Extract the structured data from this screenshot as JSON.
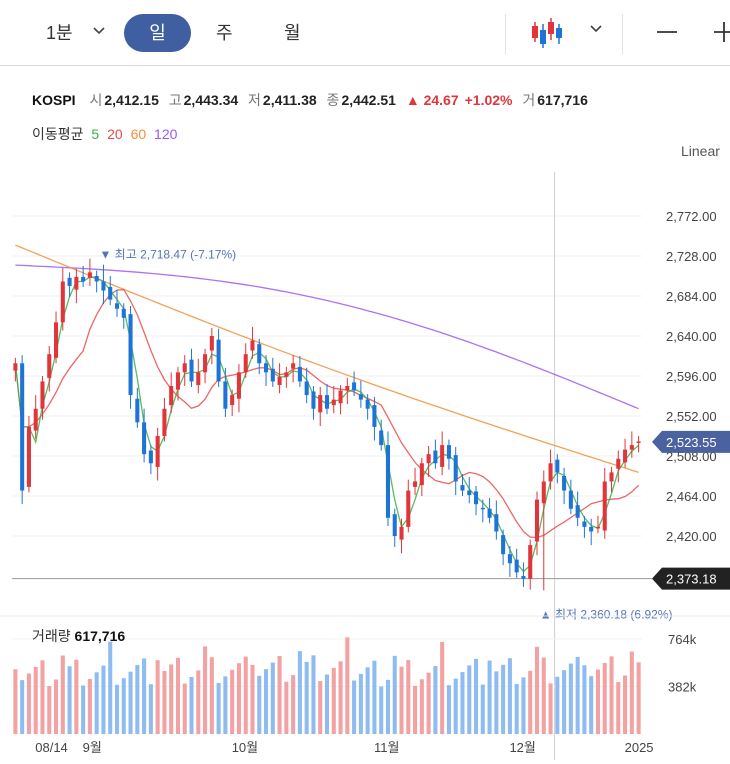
{
  "toolbar": {
    "minute_label": "1분",
    "day_label": "일",
    "week_label": "주",
    "month_label": "월",
    "chart_type_icon": "candlestick-icon",
    "zoom_out_icon": "minus-icon",
    "zoom_in_icon": "plus-icon"
  },
  "quote": {
    "symbol": "KOSPI",
    "open_label": "시",
    "open": "2,412.15",
    "high_label": "고",
    "high": "2,443.34",
    "low_label": "저",
    "low": "2,411.38",
    "close_label": "종",
    "close": "2,442.51",
    "change": "▲ 24.67",
    "change_pct": "+1.02%",
    "volume_label": "거",
    "volume": "617,716"
  },
  "moving_average": {
    "label": "이동평균",
    "periods": [
      {
        "label": "5",
        "color": "#3cb043"
      },
      {
        "label": "20",
        "color": "#e84c4c"
      },
      {
        "label": "60",
        "color": "#f0913a"
      },
      {
        "label": "120",
        "color": "#9b59f5"
      }
    ]
  },
  "scale_mode": "Linear",
  "volume_panel": {
    "title": "거래량",
    "value": "617,716"
  },
  "colors": {
    "up": "#e0363b",
    "down": "#1e74d6",
    "vol_up": "#f2a2a2",
    "vol_down": "#8fbcf0",
    "last_price_badge": "#4a62a0",
    "low_badge": "#222222",
    "annotation": "#5575b8"
  },
  "chart_data": {
    "type": "candlestick",
    "title": "",
    "ylim": [
      2340,
      2800
    ],
    "y_ticks": [
      "2,772.00",
      "2,728.00",
      "2,684.00",
      "2,640.00",
      "2,596.00",
      "2,552.00",
      "2,508.00",
      "2,464.00",
      "2,420.00"
    ],
    "y_tick_values": [
      2772,
      2728,
      2684,
      2640,
      2596,
      2552,
      2508,
      2464,
      2420
    ],
    "x_labels": [
      "08/14",
      "9월",
      "10월",
      "11월",
      "12월",
      "2025"
    ],
    "x_label_index": [
      5,
      12,
      34,
      55,
      75,
      92
    ],
    "last_price": "2,523.55",
    "last_price_value": 2523.55,
    "low_line": "2,373.18",
    "low_line_value": 2373.18,
    "high_annotation": "▼ 최고 2,718.47 (-7.17%)",
    "high_annotation_index": 13,
    "high_annotation_value": 2718.47,
    "low_annotation": "▲ 최저 2,360.18 (6.92%)",
    "low_annotation_index": 78,
    "low_annotation_value": 2360.18,
    "volume_ylim": [
      0,
      900
    ],
    "volume_ticks": [
      "764k",
      "382k"
    ],
    "volume_tick_values": [
      764,
      382
    ],
    "closes": [
      2610,
      2470,
      2540,
      2560,
      2590,
      2620,
      2655,
      2700,
      2695,
      2705,
      2700,
      2710,
      2700,
      2690,
      2680,
      2670,
      2660,
      2575,
      2545,
      2510,
      2500,
      2530,
      2560,
      2585,
      2600,
      2610,
      2590,
      2600,
      2620,
      2640,
      2590,
      2560,
      2575,
      2600,
      2620,
      2635,
      2610,
      2600,
      2590,
      2595,
      2600,
      2610,
      2590,
      2575,
      2560,
      2575,
      2560,
      2570,
      2580,
      2585,
      2580,
      2570,
      2560,
      2540,
      2520,
      2440,
      2420,
      2430,
      2470,
      2480,
      2500,
      2510,
      2500,
      2520,
      2505,
      2480,
      2470,
      2465,
      2455,
      2450,
      2440,
      2425,
      2400,
      2390,
      2380,
      2373,
      2410,
      2460,
      2480,
      2500,
      2490,
      2470,
      2450,
      2440,
      2430,
      2425,
      2430,
      2480,
      2490,
      2505,
      2515,
      2520,
      2524
    ]
  }
}
